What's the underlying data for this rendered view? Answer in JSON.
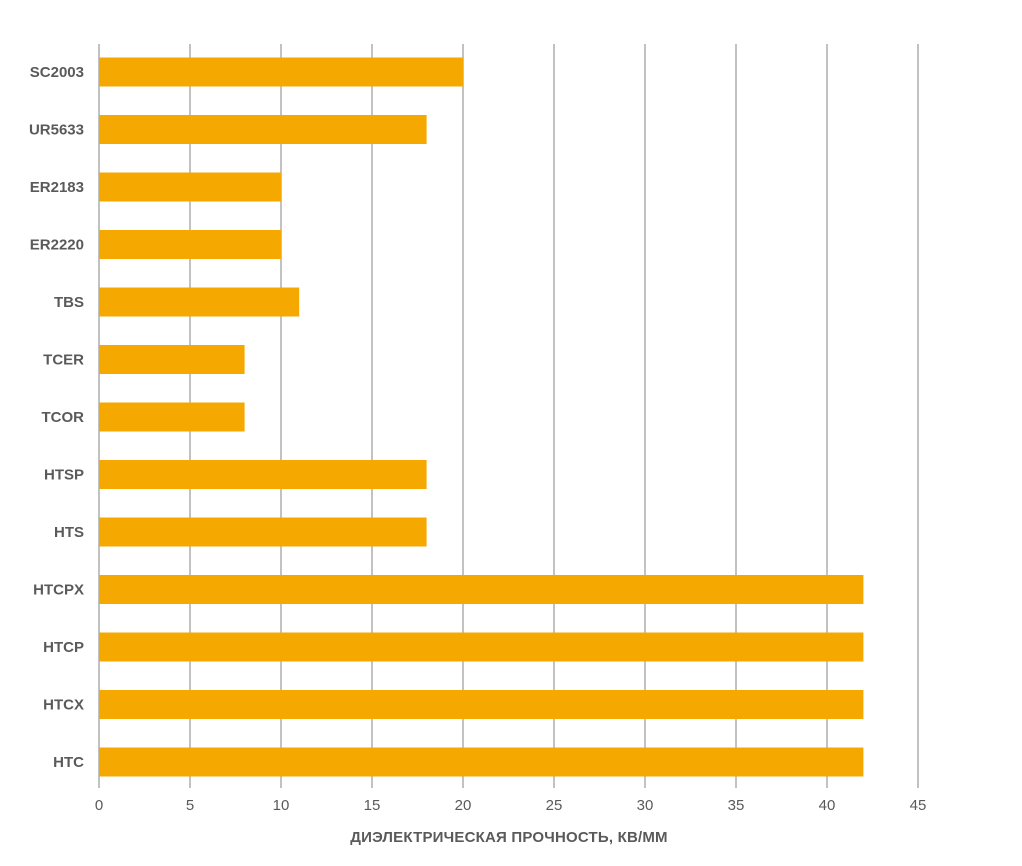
{
  "chart_data": {
    "type": "bar",
    "orientation": "horizontal",
    "categories": [
      "SC2003",
      "UR5633",
      "ER2183",
      "ER2220",
      "TBS",
      "TCER",
      "TCOR",
      "HTSP",
      "HTS",
      "HTCPX",
      "HTCP",
      "HTCX",
      "HTC"
    ],
    "values": [
      20,
      18,
      10,
      10,
      11,
      8,
      8,
      18,
      18,
      42,
      42,
      42,
      42
    ],
    "xlabel": "ДИЭЛЕКТРИЧЕСКАЯ ПРОЧНОСТЬ, КВ/ММ",
    "ylabel": "",
    "title": "",
    "xlim": [
      0,
      45
    ],
    "xticks": [
      "0",
      "5",
      "10",
      "15",
      "20",
      "25",
      "30",
      "35",
      "40",
      "45"
    ],
    "grid": "vertical",
    "legend": "none",
    "bar_color": "#F5A800",
    "grid_color": "#9A9A9A",
    "text_color": "#5A5A5A"
  }
}
